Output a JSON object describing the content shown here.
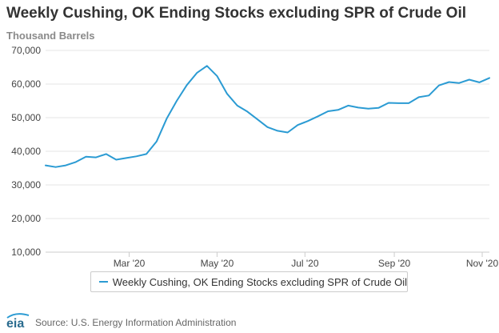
{
  "title": "Weekly Cushing, OK Ending Stocks excluding SPR of Crude Oil",
  "subtitle": "Thousand Barrels",
  "source": "Source: U.S. Energy Information Administration",
  "logo_text": "eia",
  "colors": {
    "line": "#2b9bd3",
    "grid": "#e6e6e6",
    "axis": "#cccccc"
  },
  "chart_data": {
    "type": "line",
    "title": "Weekly Cushing, OK Ending Stocks excluding SPR of Crude Oil",
    "ylabel": "Thousand Barrels",
    "xlabel": "",
    "ylim": [
      10000,
      70000
    ],
    "xlim": [
      "2020-01-03",
      "2020-11-06"
    ],
    "y_ticks": [
      10000,
      20000,
      30000,
      40000,
      50000,
      60000,
      70000
    ],
    "y_tick_labels": [
      "10,000",
      "20,000",
      "30,000",
      "40,000",
      "50,000",
      "60,000",
      "70,000"
    ],
    "x_ticks": [
      "2020-03-01",
      "2020-05-01",
      "2020-07-01",
      "2020-09-01",
      "2020-11-01"
    ],
    "x_tick_labels": [
      "Mar '20",
      "May '20",
      "Jul '20",
      "Sep '20",
      "Nov '20"
    ],
    "grid": true,
    "legend_position": "bottom-center",
    "series": [
      {
        "name": "Weekly Cushing, OK Ending Stocks excluding SPR of Crude Oil",
        "x": [
          "2020-01-03",
          "2020-01-10",
          "2020-01-17",
          "2020-01-24",
          "2020-01-31",
          "2020-02-07",
          "2020-02-14",
          "2020-02-21",
          "2020-02-28",
          "2020-03-06",
          "2020-03-13",
          "2020-03-20",
          "2020-03-27",
          "2020-04-03",
          "2020-04-10",
          "2020-04-17",
          "2020-04-24",
          "2020-05-01",
          "2020-05-08",
          "2020-05-15",
          "2020-05-22",
          "2020-05-29",
          "2020-06-05",
          "2020-06-12",
          "2020-06-19",
          "2020-06-26",
          "2020-07-03",
          "2020-07-10",
          "2020-07-17",
          "2020-07-24",
          "2020-07-31",
          "2020-08-07",
          "2020-08-14",
          "2020-08-21",
          "2020-08-28",
          "2020-09-04",
          "2020-09-11",
          "2020-09-18",
          "2020-09-25",
          "2020-10-02",
          "2020-10-09",
          "2020-10-16",
          "2020-10-23",
          "2020-10-30",
          "2020-11-06"
        ],
        "values": [
          35800,
          35300,
          35800,
          36800,
          38400,
          38200,
          39200,
          37500,
          38000,
          38500,
          39200,
          42900,
          49700,
          55000,
          59700,
          63300,
          65400,
          62400,
          57100,
          53600,
          51800,
          49500,
          47200,
          46100,
          45600,
          47800,
          49000,
          50400,
          51900,
          52300,
          53600,
          53000,
          52700,
          52900,
          54400,
          54300,
          54300,
          56100,
          56600,
          59600,
          60600,
          60300,
          61300,
          60500,
          61800
        ]
      }
    ]
  }
}
